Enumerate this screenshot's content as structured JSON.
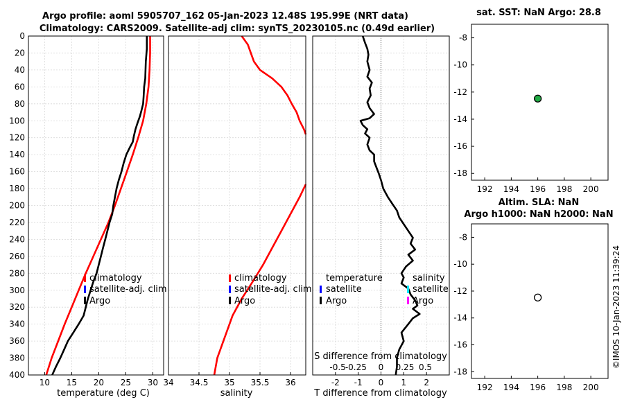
{
  "title_line1": "Argo profile: aoml 5905707_162 05-Jan-2023 12.48S 195.99E (NRT data)",
  "title_line2": "Climatology: CARS2009. Satellite-adj clim: synTS_20230105.nc (0.49d earlier)",
  "timestamp": "©IMOS 10-Jan-2023 11:39:24",
  "colors": {
    "climatology": "#ff0000",
    "satellite": "#0000ff",
    "argo": "#000000",
    "sat_salinity": "#00e5ff",
    "argo_salinity": "#ff00ff",
    "sst_marker": "#22aa44",
    "grid": "#d8d8d8"
  },
  "legend": {
    "climatology": "climatology",
    "satellite_adj": "satellite-adj. clim",
    "argo": "Argo",
    "diff_temperature": "temperature",
    "diff_salinity": "salinity",
    "diff_satellite": "satellite"
  },
  "chart_data": [
    {
      "id": "temperature",
      "type": "line",
      "xlabel": "temperature (deg C)",
      "xlim": [
        7,
        32
      ],
      "ylim": [
        0,
        400
      ],
      "xticks": [
        10,
        15,
        20,
        25,
        30
      ],
      "yticks": [
        0,
        20,
        40,
        60,
        80,
        100,
        120,
        140,
        160,
        180,
        200,
        220,
        240,
        260,
        280,
        300,
        320,
        340,
        360,
        380,
        400
      ],
      "series": [
        {
          "name": "climatology",
          "color": "#ff0000",
          "points": [
            [
              29.5,
              0
            ],
            [
              29.5,
              20
            ],
            [
              29.4,
              40
            ],
            [
              29.2,
              60
            ],
            [
              28.8,
              80
            ],
            [
              28.2,
              100
            ],
            [
              27.3,
              120
            ],
            [
              26.3,
              140
            ],
            [
              25.2,
              160
            ],
            [
              24.1,
              180
            ],
            [
              23.0,
              200
            ],
            [
              21.8,
              220
            ],
            [
              20.4,
              240
            ],
            [
              19.0,
              260
            ],
            [
              17.6,
              280
            ],
            [
              16.3,
              300
            ],
            [
              15.0,
              320
            ],
            [
              13.7,
              340
            ],
            [
              12.5,
              360
            ],
            [
              11.3,
              380
            ],
            [
              10.3,
              400
            ]
          ]
        },
        {
          "name": "Argo",
          "color": "#000000",
          "points": [
            [
              28.9,
              0
            ],
            [
              28.9,
              15
            ],
            [
              28.7,
              30
            ],
            [
              28.6,
              50
            ],
            [
              28.4,
              60
            ],
            [
              28.3,
              72
            ],
            [
              28.2,
              80
            ],
            [
              27.9,
              88
            ],
            [
              27.6,
              95
            ],
            [
              27.2,
              102
            ],
            [
              26.8,
              110
            ],
            [
              26.5,
              118
            ],
            [
              26.3,
              125
            ],
            [
              25.7,
              132
            ],
            [
              25.1,
              140
            ],
            [
              24.6,
              150
            ],
            [
              24.2,
              160
            ],
            [
              23.7,
              170
            ],
            [
              23.3,
              180
            ],
            [
              23.0,
              190
            ],
            [
              22.7,
              200
            ],
            [
              22.5,
              210
            ],
            [
              22.0,
              220
            ],
            [
              21.6,
              230
            ],
            [
              21.2,
              240
            ],
            [
              20.8,
              250
            ],
            [
              20.4,
              260
            ],
            [
              20.0,
              270
            ],
            [
              19.6,
              280
            ],
            [
              19.0,
              290
            ],
            [
              18.5,
              300
            ],
            [
              18.0,
              310
            ],
            [
              17.6,
              320
            ],
            [
              17.2,
              330
            ],
            [
              16.3,
              340
            ],
            [
              15.3,
              350
            ],
            [
              14.3,
              360
            ],
            [
              13.6,
              370
            ],
            [
              12.9,
              380
            ],
            [
              12.1,
              390
            ],
            [
              11.4,
              400
            ]
          ]
        }
      ]
    },
    {
      "id": "salinity",
      "type": "line",
      "xlabel": "salinity",
      "xlim": [
        34,
        36.25
      ],
      "ylim": [
        0,
        400
      ],
      "xticks": [
        34,
        34.5,
        35,
        35.5,
        36
      ],
      "series": [
        {
          "name": "climatology (upper)",
          "color": "#ff0000",
          "points": [
            [
              35.2,
              0
            ],
            [
              35.3,
              10
            ],
            [
              35.35,
              20
            ],
            [
              35.4,
              30
            ],
            [
              35.5,
              40
            ],
            [
              35.7,
              50
            ],
            [
              35.85,
              60
            ],
            [
              35.95,
              70
            ],
            [
              36.02,
              80
            ],
            [
              36.1,
              90
            ],
            [
              36.15,
              100
            ],
            [
              36.22,
              110
            ],
            [
              36.25,
              116
            ]
          ]
        },
        {
          "name": "climatology (lower)",
          "color": "#ff0000",
          "points": [
            [
              36.25,
              175
            ],
            [
              36.15,
              190
            ],
            [
              36.0,
              210
            ],
            [
              35.85,
              230
            ],
            [
              35.7,
              250
            ],
            [
              35.55,
              270
            ],
            [
              35.38,
              290
            ],
            [
              35.2,
              310
            ],
            [
              35.05,
              330
            ],
            [
              34.9,
              360
            ],
            [
              34.8,
              380
            ],
            [
              34.75,
              400
            ]
          ]
        }
      ]
    },
    {
      "id": "difference",
      "type": "line",
      "xlabel": "T difference from climatology",
      "x2label": "S difference from climatology",
      "xlim": [
        -3,
        3
      ],
      "ylim": [
        0,
        400
      ],
      "xticks": [
        -2,
        -1,
        0,
        1,
        2
      ],
      "x2ticks": [
        "-0.5",
        "-0.25",
        "0",
        "0.25",
        "0.5"
      ],
      "series": [
        {
          "name": "Argo",
          "color": "#000000",
          "points": [
            [
              -0.8,
              0
            ],
            [
              -0.7,
              8
            ],
            [
              -0.6,
              15
            ],
            [
              -0.55,
              22
            ],
            [
              -0.6,
              30
            ],
            [
              -0.5,
              40
            ],
            [
              -0.6,
              48
            ],
            [
              -0.4,
              55
            ],
            [
              -0.5,
              62
            ],
            [
              -0.45,
              70
            ],
            [
              -0.6,
              78
            ],
            [
              -0.5,
              85
            ],
            [
              -0.3,
              92
            ],
            [
              -0.5,
              97
            ],
            [
              -0.9,
              100
            ],
            [
              -0.8,
              105
            ],
            [
              -0.6,
              110
            ],
            [
              -0.7,
              115
            ],
            [
              -0.5,
              120
            ],
            [
              -0.6,
              128
            ],
            [
              -0.5,
              135
            ],
            [
              -0.3,
              140
            ],
            [
              -0.3,
              148
            ],
            [
              -0.2,
              155
            ],
            [
              -0.1,
              162
            ],
            [
              0.0,
              170
            ],
            [
              0.1,
              180
            ],
            [
              0.3,
              190
            ],
            [
              0.5,
              198
            ],
            [
              0.7,
              206
            ],
            [
              0.8,
              214
            ],
            [
              1.0,
              222
            ],
            [
              1.2,
              230
            ],
            [
              1.4,
              238
            ],
            [
              1.3,
              245
            ],
            [
              1.5,
              252
            ],
            [
              1.2,
              258
            ],
            [
              1.4,
              265
            ],
            [
              1.1,
              272
            ],
            [
              0.9,
              280
            ],
            [
              1.0,
              285
            ],
            [
              0.9,
              292
            ],
            [
              1.2,
              298
            ],
            [
              1.3,
              305
            ],
            [
              1.5,
              312
            ],
            [
              1.6,
              318
            ],
            [
              1.4,
              322
            ],
            [
              1.7,
              328
            ],
            [
              1.4,
              333
            ],
            [
              1.2,
              340
            ],
            [
              0.9,
              350
            ],
            [
              1.0,
              360
            ],
            [
              0.8,
              370
            ],
            [
              0.7,
              380
            ],
            [
              0.7,
              390
            ],
            [
              0.65,
              400
            ]
          ]
        }
      ]
    },
    {
      "id": "sst_map",
      "type": "scatter",
      "title": "sat. SST: NaN Argo: 28.8",
      "xlim": [
        191,
        201.3
      ],
      "ylim": [
        -18.5,
        -7
      ],
      "xticks": [
        192,
        194,
        196,
        198,
        200
      ],
      "yticks": [
        -8,
        -10,
        -12,
        -14,
        -16,
        -18
      ],
      "points": [
        {
          "x": 196,
          "y": -12.48,
          "fill": "#22aa44"
        }
      ]
    },
    {
      "id": "sla_map",
      "type": "scatter",
      "title_line1": "Altim. SLA: NaN",
      "title_line2": "Argo h1000: NaN h2000: NaN",
      "xlim": [
        191,
        201.3
      ],
      "ylim": [
        -18.5,
        -7
      ],
      "xticks": [
        192,
        194,
        196,
        198,
        200
      ],
      "yticks": [
        -8,
        -10,
        -12,
        -14,
        -16,
        -18
      ],
      "points": [
        {
          "x": 196,
          "y": -12.48,
          "fill": "#ffffff"
        }
      ]
    }
  ]
}
